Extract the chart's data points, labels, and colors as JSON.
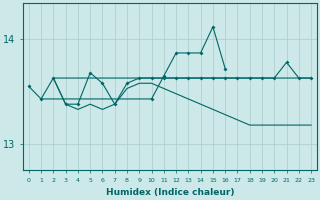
{
  "xlabel": "Humidex (Indice chaleur)",
  "background_color": "#cce8e8",
  "grid_color": "#aacccc",
  "line_color": "#006666",
  "x_values": [
    0,
    1,
    2,
    3,
    4,
    5,
    6,
    7,
    8,
    9,
    10,
    11,
    12,
    13,
    14,
    15,
    16,
    17,
    18,
    19,
    20,
    21,
    22,
    23
  ],
  "ylim": [
    12.75,
    14.35
  ],
  "yticks": [
    13,
    14
  ],
  "xlim": [
    -0.5,
    23.5
  ],
  "series1_x": [
    0,
    1,
    10,
    11,
    12,
    13,
    14,
    15,
    16
  ],
  "series1_y": [
    13.55,
    13.43,
    13.43,
    13.65,
    13.87,
    13.87,
    13.87,
    14.12,
    13.72
  ],
  "series2_x": [
    1,
    2,
    3,
    4,
    5,
    6,
    7,
    8,
    9,
    10,
    11,
    12,
    13,
    14,
    15,
    16,
    17,
    18,
    19,
    20,
    21,
    22,
    23
  ],
  "series2_y": [
    13.43,
    13.63,
    13.63,
    13.63,
    13.63,
    13.63,
    13.63,
    13.63,
    13.63,
    13.63,
    13.63,
    13.63,
    13.63,
    13.63,
    13.63,
    13.63,
    13.63,
    13.63,
    13.63,
    13.63,
    13.63,
    13.63,
    13.63
  ],
  "series3_x": [
    2,
    3,
    4,
    5,
    6,
    7,
    8,
    9,
    10,
    11,
    12,
    13,
    14,
    15,
    16,
    17,
    18,
    19,
    20,
    21,
    22,
    23
  ],
  "series3_y": [
    13.63,
    13.38,
    13.38,
    13.68,
    13.58,
    13.38,
    13.58,
    13.63,
    13.63,
    13.63,
    13.63,
    13.63,
    13.63,
    13.63,
    13.63,
    13.63,
    13.63,
    13.63,
    13.63,
    13.78,
    13.63,
    13.63
  ],
  "series4_x": [
    2,
    3,
    4,
    5,
    6,
    7,
    8,
    9,
    10,
    11,
    12,
    13,
    14,
    15,
    16,
    17,
    18,
    19,
    20,
    21,
    22,
    23
  ],
  "series4_y": [
    13.63,
    13.38,
    13.33,
    13.38,
    13.33,
    13.38,
    13.53,
    13.58,
    13.58,
    13.53,
    13.48,
    13.43,
    13.38,
    13.33,
    13.28,
    13.23,
    13.18,
    13.18,
    13.18,
    13.18,
    13.18,
    13.18
  ]
}
